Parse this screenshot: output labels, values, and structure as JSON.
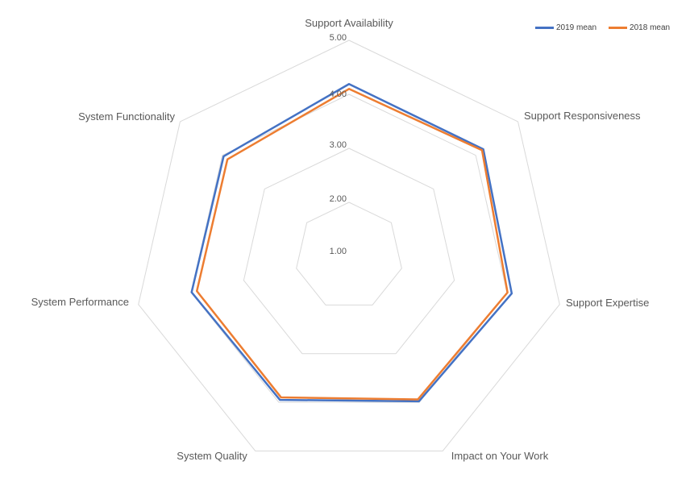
{
  "chart_data": {
    "type": "radar",
    "categories": [
      "Support Availability",
      "Support Responsiveness",
      "Support Expertise",
      "Impact on Your Work",
      "System Quality",
      "System Performance",
      "System Functionality"
    ],
    "series": [
      {
        "name": "2019 mean",
        "color": "#4472C4",
        "values": [
          4.19,
          4.18,
          4.09,
          3.98,
          3.95,
          3.99,
          3.97
        ]
      },
      {
        "name": "2018 mean",
        "color": "#ED7D31",
        "values": [
          4.1,
          4.15,
          4.01,
          3.94,
          3.9,
          3.89,
          3.88
        ]
      }
    ],
    "axis": {
      "min": 1,
      "max": 5,
      "step": 1,
      "tick_labels": [
        "1.00",
        "2.00",
        "3.00",
        "4.00",
        "5.00"
      ]
    },
    "gridline_color": "#D9D9D9",
    "background_color": "#FFFFFF",
    "legend_position": "top-right",
    "grid": "rings-only"
  }
}
